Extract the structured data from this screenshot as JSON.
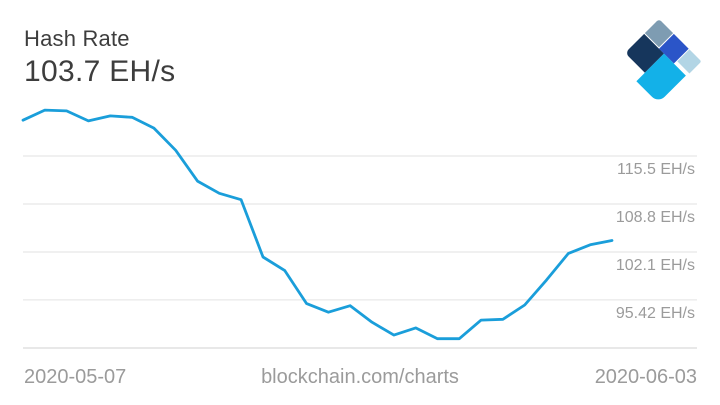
{
  "header": {
    "title": "Hash Rate",
    "value": "103.7 EH/s"
  },
  "logo": {
    "label": "blockchain-logo",
    "colors": {
      "slate": "#7E9CB2",
      "navy": "#16365C",
      "royal": "#2B55C8",
      "cyan": "#13B1E8",
      "light": "#B2D5E5"
    }
  },
  "footer": {
    "start_date": "2020-05-07",
    "site": "blockchain.com/charts",
    "end_date": "2020-06-03"
  },
  "chart_data": {
    "type": "line",
    "title": "Hash Rate",
    "current_value": "103.7 EH/s",
    "unit": "EH/s",
    "xlabel": "",
    "ylabel": "",
    "x_start_label": "2020-05-07",
    "x_end_label": "2020-06-03",
    "y_axis_labels": [
      "115.5 EH/s",
      "108.8 EH/s",
      "102.1 EH/s",
      "95.42 EH/s"
    ],
    "y_axis_values": [
      115.5,
      108.8,
      102.1,
      95.42
    ],
    "ylim": [
      88.7,
      123.3
    ],
    "grid": true,
    "legend": false,
    "line_color": "#1A9EDA",
    "values": [
      120.5,
      121.9,
      121.8,
      120.4,
      121.1,
      120.9,
      119.4,
      116.3,
      112.0,
      110.3,
      109.4,
      101.4,
      99.5,
      94.9,
      93.7,
      94.6,
      92.3,
      90.5,
      91.5,
      90.0,
      90.0,
      92.6,
      92.7,
      94.7,
      98.2,
      101.9,
      103.1,
      103.7
    ]
  }
}
